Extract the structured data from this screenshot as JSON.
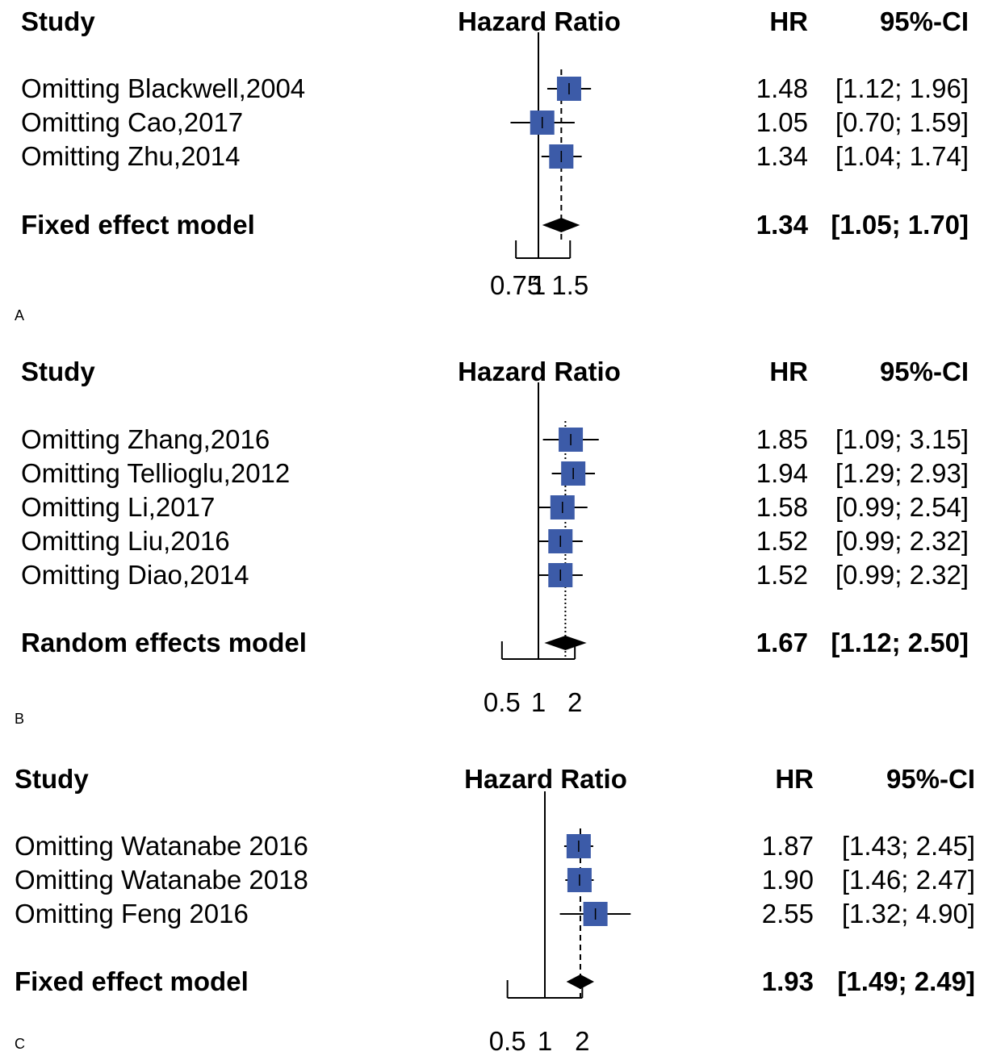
{
  "panels": [
    {
      "panel_label": "A",
      "headers": {
        "study": "Study",
        "measure": "Hazard Ratio",
        "hr": "HR",
        "ci": "95%-CI"
      },
      "ticks": [
        "0.75",
        "1",
        "1.5"
      ],
      "studies": [
        {
          "label": "Omitting Blackwell,2004",
          "hr_text": "1.48",
          "ci_text": "[1.12; 1.96]"
        },
        {
          "label": "Omitting Cao,2017",
          "hr_text": "1.05",
          "ci_text": "[0.70; 1.59]"
        },
        {
          "label": "Omitting Zhu,2014",
          "hr_text": "1.34",
          "ci_text": "[1.04; 1.74]"
        }
      ],
      "model": {
        "label": "Fixed effect model",
        "hr_text": "1.34",
        "ci_text": "[1.05; 1.70]"
      }
    },
    {
      "panel_label": "B",
      "headers": {
        "study": "Study",
        "measure": "Hazard Ratio",
        "hr": "HR",
        "ci": "95%-CI"
      },
      "ticks": [
        "0.5",
        "1",
        "2"
      ],
      "studies": [
        {
          "label": "Omitting Zhang,2016",
          "hr_text": "1.85",
          "ci_text": "[1.09; 3.15]"
        },
        {
          "label": "Omitting Tellioglu,2012",
          "hr_text": "1.94",
          "ci_text": "[1.29; 2.93]"
        },
        {
          "label": "Omitting Li,2017",
          "hr_text": "1.58",
          "ci_text": "[0.99; 2.54]"
        },
        {
          "label": "Omitting Liu,2016",
          "hr_text": "1.52",
          "ci_text": "[0.99; 2.32]"
        },
        {
          "label": "Omitting Diao,2014",
          "hr_text": "1.52",
          "ci_text": "[0.99; 2.32]"
        }
      ],
      "model": {
        "label": "Random effects model",
        "hr_text": "1.67",
        "ci_text": "[1.12; 2.50]"
      }
    },
    {
      "panel_label": "C",
      "headers": {
        "study": "Study",
        "measure": "Hazard Ratio",
        "hr": "HR",
        "ci": "95%-CI"
      },
      "ticks": [
        "0.5",
        "1",
        "2"
      ],
      "studies": [
        {
          "label": "Omitting Watanabe 2016",
          "hr_text": "1.87",
          "ci_text": "[1.43; 2.45]"
        },
        {
          "label": "Omitting Watanabe 2018",
          "hr_text": "1.90",
          "ci_text": "[1.46; 2.47]"
        },
        {
          "label": "Omitting Feng 2016",
          "hr_text": "2.55",
          "ci_text": "[1.32; 4.90]"
        }
      ],
      "model": {
        "label": "Fixed effect model",
        "hr_text": "1.93",
        "ci_text": "[1.49; 2.49]"
      }
    }
  ],
  "colors": {
    "square": "#3c5ba8",
    "line": "#000000",
    "diamond": "#000000"
  },
  "chart_data": [
    {
      "type": "forest",
      "panel": "A",
      "x_scale": "log",
      "x_ticks": [
        0.75,
        1,
        1.5
      ],
      "reference_line": 1,
      "pooled_line_style": "dashed",
      "studies": [
        {
          "name": "Omitting Blackwell,2004",
          "hr": 1.48,
          "lower": 1.12,
          "upper": 1.96
        },
        {
          "name": "Omitting Cao,2017",
          "hr": 1.05,
          "lower": 0.7,
          "upper": 1.59
        },
        {
          "name": "Omitting Zhu,2014",
          "hr": 1.34,
          "lower": 1.04,
          "upper": 1.74
        }
      ],
      "pooled": {
        "name": "Fixed effect model",
        "hr": 1.34,
        "lower": 1.05,
        "upper": 1.7
      }
    },
    {
      "type": "forest",
      "panel": "B",
      "x_scale": "log",
      "x_ticks": [
        0.5,
        1,
        2
      ],
      "reference_line": 1,
      "pooled_line_style": "dotted",
      "studies": [
        {
          "name": "Omitting Zhang,2016",
          "hr": 1.85,
          "lower": 1.09,
          "upper": 3.15
        },
        {
          "name": "Omitting Tellioglu,2012",
          "hr": 1.94,
          "lower": 1.29,
          "upper": 2.93
        },
        {
          "name": "Omitting Li,2017",
          "hr": 1.58,
          "lower": 0.99,
          "upper": 2.54
        },
        {
          "name": "Omitting Liu,2016",
          "hr": 1.52,
          "lower": 0.99,
          "upper": 2.32
        },
        {
          "name": "Omitting Diao,2014",
          "hr": 1.52,
          "lower": 0.99,
          "upper": 2.32
        }
      ],
      "pooled": {
        "name": "Random effects model",
        "hr": 1.67,
        "lower": 1.12,
        "upper": 2.5
      }
    },
    {
      "type": "forest",
      "panel": "C",
      "x_scale": "log",
      "x_ticks": [
        0.5,
        1,
        2
      ],
      "reference_line": 1,
      "pooled_line_style": "dashed",
      "studies": [
        {
          "name": "Omitting Watanabe 2016",
          "hr": 1.87,
          "lower": 1.43,
          "upper": 2.45
        },
        {
          "name": "Omitting Watanabe 2018",
          "hr": 1.9,
          "lower": 1.46,
          "upper": 2.47
        },
        {
          "name": "Omitting Feng 2016",
          "hr": 2.55,
          "lower": 1.32,
          "upper": 4.9
        }
      ],
      "pooled": {
        "name": "Fixed effect model",
        "hr": 1.93,
        "lower": 1.49,
        "upper": 2.49
      }
    }
  ]
}
